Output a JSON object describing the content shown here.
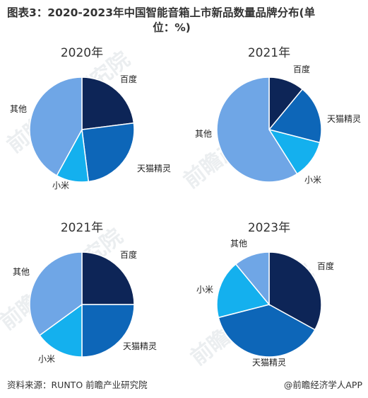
{
  "header": {
    "title_line1": "图表3：2020-2023年中国智能音箱上市新品数量品牌分布(单",
    "title_line2": "位：%)"
  },
  "chart_data": [
    {
      "type": "pie",
      "title": "2020年",
      "categories": [
        "百度",
        "天猫精灵",
        "小米",
        "其他"
      ],
      "values": [
        23,
        25,
        10,
        42
      ],
      "colors": [
        "#0d2557",
        "#0d66b8",
        "#14b0ee",
        "#6fa6e6"
      ]
    },
    {
      "type": "pie",
      "title": "2021年",
      "categories": [
        "百度",
        "天猫精灵",
        "小米",
        "其他"
      ],
      "values": [
        11,
        18,
        12,
        59
      ],
      "colors": [
        "#0d2557",
        "#0d66b8",
        "#14b0ee",
        "#6fa6e6"
      ]
    },
    {
      "type": "pie",
      "title": "2021年",
      "categories": [
        "百度",
        "天猫精灵",
        "小米",
        "其他"
      ],
      "values": [
        25,
        25,
        15,
        35
      ],
      "colors": [
        "#0d2557",
        "#0d66b8",
        "#14b0ee",
        "#6fa6e6"
      ]
    },
    {
      "type": "pie",
      "title": "2023年",
      "categories": [
        "百度",
        "天猫精灵",
        "小米",
        "其他"
      ],
      "values": [
        33,
        38,
        18,
        11
      ],
      "colors": [
        "#0d2557",
        "#0d66b8",
        "#14b0ee",
        "#6fa6e6"
      ]
    }
  ],
  "footer": {
    "source": "资料来源：RUNTO 前瞻产业研究院",
    "brand": "@前瞻经济学人APP"
  }
}
